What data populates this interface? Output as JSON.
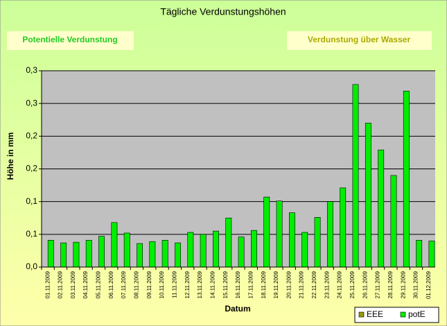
{
  "chart_data": {
    "type": "bar",
    "title": "Tägliche Verdunstungshöhen",
    "buttons": [
      "Potentielle Verdunstung",
      "Verdunstung über Wasser"
    ],
    "x_label": "Datum",
    "y_label": "Höhe in mm",
    "categories": [
      "01.11.2009",
      "02.11.2009",
      "03.11.2009",
      "04.11.2009",
      "05.11.2009",
      "06.11.2009",
      "07.11.2009",
      "08.11.2009",
      "09.11.2009",
      "10.11.2009",
      "11.11.2009",
      "12.11.2009",
      "13.11.2009",
      "14.11.2009",
      "15.11.2009",
      "16.11.2009",
      "17.11.2009",
      "18.11.2009",
      "19.11.2009",
      "20.11.2009",
      "21.11.2009",
      "22.11.2009",
      "23.11.2009",
      "24.11.2009",
      "25.11.2009",
      "26.11.2009",
      "27.11.2009",
      "28.11.2009",
      "29.11.2009",
      "30.11.2009",
      "01.12.2009"
    ],
    "series": [
      {
        "name": "EEE",
        "color": "#999900",
        "values": [
          null,
          null,
          null,
          null,
          null,
          null,
          null,
          null,
          null,
          null,
          null,
          null,
          null,
          null,
          null,
          null,
          null,
          null,
          null,
          null,
          null,
          null,
          null,
          null,
          null,
          null,
          null,
          null,
          null,
          null,
          null
        ]
      },
      {
        "name": "potE",
        "color": "#00ee00",
        "values": [
          0.041,
          0.037,
          0.038,
          0.041,
          0.047,
          0.068,
          0.052,
          0.036,
          0.039,
          0.041,
          0.037,
          0.053,
          0.05,
          0.055,
          0.075,
          0.046,
          0.056,
          0.107,
          0.101,
          0.083,
          0.053,
          0.076,
          0.1,
          0.121,
          0.279,
          0.22,
          0.179,
          0.14,
          0.269,
          0.041,
          0.04
        ]
      }
    ],
    "ylim": [
      0,
      0.3
    ],
    "yticks": [
      {
        "value": 0,
        "label": "0,0"
      },
      {
        "value": 0.05,
        "label": "0,1"
      },
      {
        "value": 0.1,
        "label": "0,1"
      },
      {
        "value": 0.15,
        "label": "0,2"
      },
      {
        "value": 0.2,
        "label": "0,2"
      },
      {
        "value": 0.25,
        "label": "0,3"
      },
      {
        "value": 0.3,
        "label": "0,3"
      }
    ],
    "grid": true,
    "legend": "bottom-right"
  }
}
